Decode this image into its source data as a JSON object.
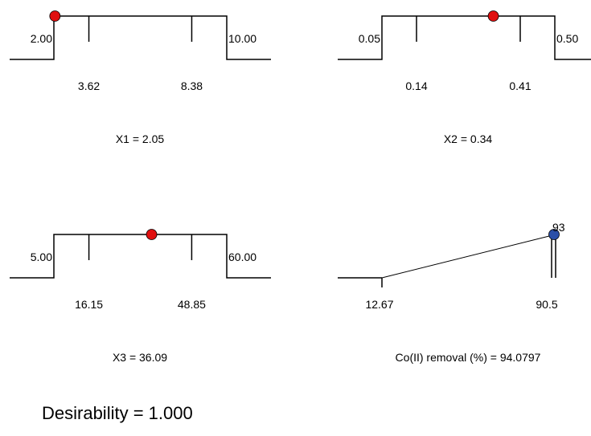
{
  "chart_data": [
    {
      "type": "desirability-ramp",
      "factor": "X1",
      "title": "X1 = 2.05",
      "range": [
        2.0,
        10.0
      ],
      "range_labels": [
        "2.00",
        "10.00"
      ],
      "axial_points": [
        3.62,
        8.38
      ],
      "axial_labels": [
        "3.62",
        "8.38"
      ],
      "optimum": 2.05,
      "marker_color": "#e01010"
    },
    {
      "type": "desirability-ramp",
      "factor": "X2",
      "title": "X2 = 0.34",
      "range": [
        0.05,
        0.5
      ],
      "range_labels": [
        "0.05",
        "0.50"
      ],
      "axial_points": [
        0.14,
        0.41
      ],
      "axial_labels": [
        "0.14",
        "0.41"
      ],
      "optimum": 0.34,
      "marker_color": "#e01010"
    },
    {
      "type": "desirability-ramp",
      "factor": "X3",
      "title": "X3 = 36.09",
      "range": [
        5.0,
        60.0
      ],
      "range_labels": [
        "5.00",
        "60.00"
      ],
      "axial_points": [
        16.15,
        48.85
      ],
      "axial_labels": [
        "16.15",
        "48.85"
      ],
      "optimum": 36.09,
      "marker_color": "#e01010"
    },
    {
      "type": "desirability-response",
      "response": "Co(II) removal (%)",
      "title": "Co(II) removal (%) = 94.0797",
      "goal_low": 12.67,
      "goal_high": 90.5,
      "low_label": "12.67",
      "high_label": "90.5",
      "max_label": "93",
      "value": 94.0797,
      "marker_color": "#2a4fa8"
    }
  ],
  "desirability": "Desirability = 1.000"
}
